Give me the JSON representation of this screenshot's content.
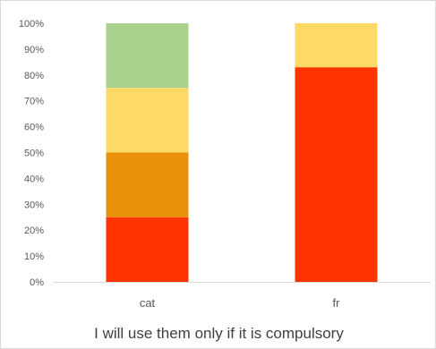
{
  "chart_data": {
    "type": "bar",
    "stacked": true,
    "percent_stacked": true,
    "title": "I will use them only if it is compulsory",
    "xlabel": "",
    "ylabel": "",
    "categories": [
      "cat",
      "fr"
    ],
    "ylim": [
      0,
      100
    ],
    "y_ticks": [
      "0%",
      "10%",
      "20%",
      "30%",
      "40%",
      "50%",
      "60%",
      "70%",
      "80%",
      "90%",
      "100%"
    ],
    "grid": false,
    "legend": "none",
    "series": [
      {
        "color": "#ff3300",
        "values": [
          25,
          83
        ]
      },
      {
        "color": "#e8900a",
        "values": [
          25,
          0
        ]
      },
      {
        "color": "#ffd966",
        "values": [
          25,
          17
        ]
      },
      {
        "color": "#a9d18e",
        "values": [
          25,
          0
        ]
      }
    ]
  }
}
